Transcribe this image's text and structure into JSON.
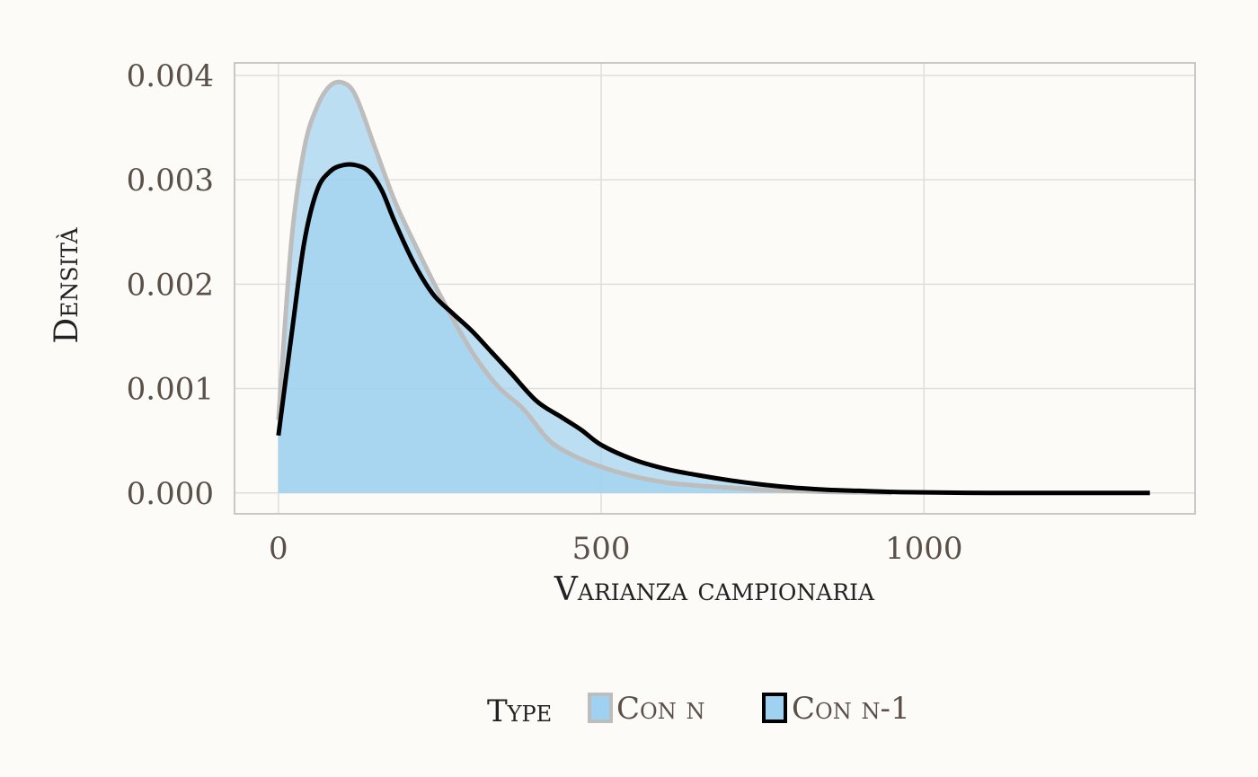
{
  "chart_data": {
    "type": "area",
    "xlabel": "Varianza campionaria",
    "ylabel": "Densità",
    "xlim": [
      -68,
      1420
    ],
    "ylim": [
      -0.0002,
      0.00412
    ],
    "x_ticks": [
      0,
      500,
      1000
    ],
    "x_tick_labels": [
      "0",
      "500",
      "1000"
    ],
    "y_ticks": [
      0,
      0.001,
      0.002,
      0.003,
      0.004
    ],
    "y_tick_labels": [
      "0.000",
      "0.001",
      "0.002",
      "0.003",
      "0.004"
    ],
    "grid": true,
    "legend": {
      "title": "Type",
      "position": "bottom",
      "entries": [
        "Con n",
        "Con n-1"
      ]
    },
    "series": [
      {
        "name": "Con n",
        "fill": "#9fd1f0",
        "stroke": "#bdbdbd",
        "x": [
          0,
          20,
          40,
          60,
          80,
          100,
          120,
          150,
          180,
          210,
          250,
          300,
          340,
          380,
          420,
          460,
          500,
          550,
          600,
          650,
          700,
          750,
          800,
          850,
          900,
          950
        ],
        "y": [
          0.0007,
          0.0024,
          0.0033,
          0.0037,
          0.0039,
          0.00393,
          0.0038,
          0.0033,
          0.0028,
          0.0024,
          0.0019,
          0.00135,
          0.00102,
          0.0008,
          0.0005,
          0.00035,
          0.00025,
          0.00016,
          0.0001,
          7e-05,
          5e-05,
          3e-05,
          2e-05,
          1e-05,
          5e-06,
          0
        ]
      },
      {
        "name": "Con n-1",
        "fill": "#9fd1f0",
        "stroke": "#000000",
        "x": [
          0,
          20,
          40,
          60,
          80,
          100,
          120,
          140,
          160,
          180,
          210,
          240,
          270,
          300,
          330,
          360,
          400,
          440,
          470,
          500,
          550,
          600,
          650,
          700,
          750,
          800,
          850,
          900,
          950,
          1000,
          1100,
          1200,
          1350
        ],
        "y": [
          0.00055,
          0.0015,
          0.0024,
          0.0029,
          0.00308,
          0.00314,
          0.00314,
          0.00308,
          0.0029,
          0.0026,
          0.0022,
          0.0019,
          0.00172,
          0.00155,
          0.00135,
          0.00115,
          0.00088,
          0.00072,
          0.0006,
          0.00046,
          0.00032,
          0.00023,
          0.00017,
          0.00012,
          8e-05,
          5e-05,
          3e-05,
          2e-05,
          1e-05,
          5e-06,
          0,
          0,
          0
        ]
      }
    ]
  }
}
